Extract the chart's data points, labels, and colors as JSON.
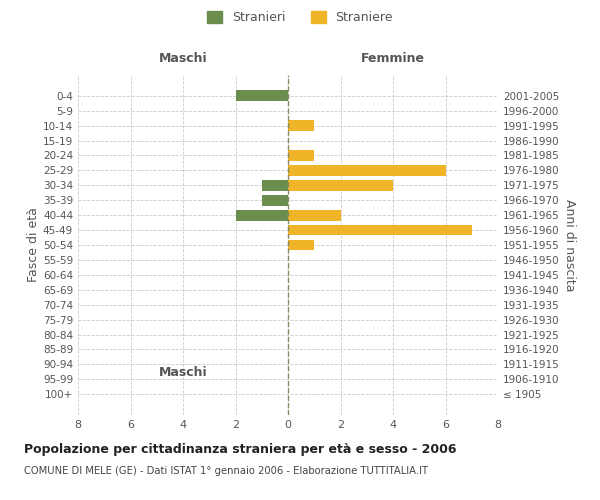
{
  "age_groups": [
    "100+",
    "95-99",
    "90-94",
    "85-89",
    "80-84",
    "75-79",
    "70-74",
    "65-69",
    "60-64",
    "55-59",
    "50-54",
    "45-49",
    "40-44",
    "35-39",
    "30-34",
    "25-29",
    "20-24",
    "15-19",
    "10-14",
    "5-9",
    "0-4"
  ],
  "birth_years": [
    "≤ 1905",
    "1906-1910",
    "1911-1915",
    "1916-1920",
    "1921-1925",
    "1926-1930",
    "1931-1935",
    "1936-1940",
    "1941-1945",
    "1946-1950",
    "1951-1955",
    "1956-1960",
    "1961-1965",
    "1966-1970",
    "1971-1975",
    "1976-1980",
    "1981-1985",
    "1986-1990",
    "1991-1995",
    "1996-2000",
    "2001-2005"
  ],
  "males": [
    0,
    0,
    0,
    0,
    0,
    0,
    0,
    0,
    0,
    0,
    0,
    0,
    2,
    1,
    1,
    0,
    0,
    0,
    0,
    0,
    2
  ],
  "females": [
    0,
    0,
    0,
    0,
    0,
    0,
    0,
    0,
    0,
    0,
    1,
    7,
    2,
    0,
    4,
    6,
    1,
    0,
    1,
    0,
    0
  ],
  "male_color": "#6b8e4e",
  "female_color": "#f0b429",
  "background_color": "#ffffff",
  "grid_color": "#cccccc",
  "title": "Popolazione per cittadinanza straniera per età e sesso - 2006",
  "subtitle": "COMUNE DI MELE (GE) - Dati ISTAT 1° gennaio 2006 - Elaborazione TUTTITALIA.IT",
  "ylabel_left": "Fasce di età",
  "ylabel_right": "Anni di nascita",
  "legend_male": "Stranieri",
  "legend_female": "Straniere",
  "xlim": 8,
  "maschi_label": "Maschi",
  "femmine_label": "Femmine",
  "label_color": "#555555"
}
